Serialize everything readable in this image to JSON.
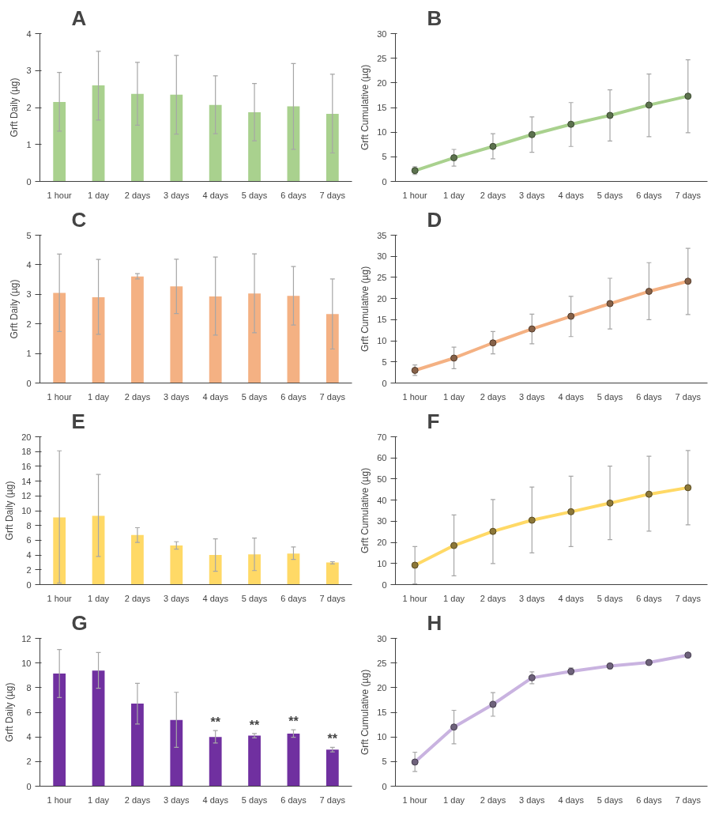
{
  "chart_data": [
    {
      "type": "bar",
      "title": "A",
      "ylabel": "Grft Daily (µg)",
      "categories": [
        "1 hour",
        "1 day",
        "2 days",
        "3 days",
        "4 days",
        "5 days",
        "6 days",
        "7 days"
      ],
      "ylim": [
        0,
        4
      ],
      "yticks": [
        0,
        1,
        2,
        3,
        4
      ],
      "grid": false,
      "series": [
        {
          "color": "#a9d18e",
          "values": [
            2.15,
            2.6,
            2.37,
            2.35,
            2.07,
            1.87,
            2.03,
            1.83
          ],
          "errors": [
            [
              1.36,
              2.95
            ],
            [
              1.66,
              3.52
            ],
            [
              1.52,
              3.22
            ],
            [
              1.28,
              3.41
            ],
            [
              1.29,
              2.86
            ],
            [
              1.1,
              2.65
            ],
            [
              0.87,
              3.19
            ],
            [
              0.77,
              2.9
            ]
          ]
        }
      ]
    },
    {
      "type": "line",
      "title": "B",
      "ylabel": "Grft Cumulative (µg)",
      "categories": [
        "1 hour",
        "1 day",
        "2 days",
        "3 days",
        "4 days",
        "5 days",
        "6 days",
        "7 days"
      ],
      "ylim": [
        0,
        30
      ],
      "yticks": [
        0,
        5,
        10,
        15,
        20,
        25,
        30
      ],
      "grid": false,
      "marker": "circle",
      "series": [
        {
          "color": "#a9d18e",
          "values": [
            2.2,
            4.8,
            7.1,
            9.5,
            11.6,
            13.4,
            15.5,
            17.3
          ],
          "errors": [
            [
              1.4,
              3.0
            ],
            [
              3.1,
              6.5
            ],
            [
              4.6,
              9.7
            ],
            [
              5.9,
              13.1
            ],
            [
              7.1,
              16
            ],
            [
              8.2,
              18.6
            ],
            [
              9.1,
              21.8
            ],
            [
              9.9,
              24.7
            ]
          ]
        }
      ]
    },
    {
      "type": "bar",
      "title": "C",
      "ylabel": "Grft Daily (µg)",
      "categories": [
        "1 hour",
        "1 day",
        "2 days",
        "3 days",
        "4 days",
        "5 days",
        "6 days",
        "7 days"
      ],
      "ylim": [
        0,
        5
      ],
      "yticks": [
        0,
        1,
        2,
        3,
        4,
        5
      ],
      "grid": false,
      "series": [
        {
          "color": "#f4b183",
          "values": [
            3.05,
            2.9,
            3.6,
            3.27,
            2.93,
            3.03,
            2.95,
            2.33
          ],
          "errors": [
            [
              1.74,
              4.36
            ],
            [
              1.65,
              4.18
            ],
            [
              3.52,
              3.7
            ],
            [
              2.35,
              4.19
            ],
            [
              1.62,
              4.26
            ],
            [
              1.7,
              4.37
            ],
            [
              1.96,
              3.94
            ],
            [
              1.15,
              3.52
            ]
          ]
        }
      ]
    },
    {
      "type": "line",
      "title": "D",
      "ylabel": "Grft Cumulative (µg)",
      "categories": [
        "1 hour",
        "1 day",
        "2 days",
        "3 days",
        "4 days",
        "5 days",
        "6 days",
        "7 days"
      ],
      "ylim": [
        0,
        35
      ],
      "yticks": [
        0,
        5,
        10,
        15,
        20,
        25,
        30,
        35
      ],
      "grid": false,
      "marker": "circle",
      "series": [
        {
          "color": "#f4b183",
          "values": [
            3.0,
            5.9,
            9.5,
            12.8,
            15.8,
            18.8,
            21.7,
            24.1
          ],
          "errors": [
            [
              1.8,
              4.3
            ],
            [
              3.4,
              8.5
            ],
            [
              6.9,
              12.2
            ],
            [
              9.3,
              16.3
            ],
            [
              11,
              20.5
            ],
            [
              12.8,
              24.8
            ],
            [
              15,
              28.5
            ],
            [
              16.2,
              31.9
            ]
          ]
        }
      ]
    },
    {
      "type": "bar",
      "title": "E",
      "ylabel": "Grft Daily (µg)",
      "categories": [
        "1 hour",
        "1 day",
        "2 days",
        "3 days",
        "4 days",
        "5 days",
        "6 days",
        "7 days"
      ],
      "ylim": [
        0,
        20
      ],
      "yticks": [
        0,
        2,
        4,
        6,
        8,
        10,
        12,
        14,
        16,
        18,
        20
      ],
      "grid": false,
      "series": [
        {
          "color": "#ffd966",
          "values": [
            9.1,
            9.3,
            6.7,
            5.3,
            4.0,
            4.1,
            4.2,
            3.0
          ],
          "errors": [
            [
              0.2,
              18.1
            ],
            [
              3.8,
              14.9
            ],
            [
              5.7,
              7.7
            ],
            [
              4.8,
              5.8
            ],
            [
              1.8,
              6.2
            ],
            [
              1.9,
              6.3
            ],
            [
              3.4,
              5.1
            ],
            [
              2.8,
              3.1
            ]
          ]
        }
      ]
    },
    {
      "type": "line",
      "title": "F",
      "ylabel": "Grft Cumulative (µg)",
      "categories": [
        "1 hour",
        "1 day",
        "2 days",
        "3 days",
        "4 days",
        "5 days",
        "6 days",
        "7 days"
      ],
      "ylim": [
        0,
        70
      ],
      "yticks": [
        0,
        10,
        20,
        30,
        40,
        50,
        60,
        70
      ],
      "grid": false,
      "marker": "circle",
      "series": [
        {
          "color": "#ffd966",
          "values": [
            9.2,
            18.5,
            25.2,
            30.5,
            34.5,
            38.6,
            42.8,
            45.9
          ],
          "errors": [
            [
              0.3,
              18.0
            ],
            [
              4.2,
              33
            ],
            [
              10,
              40.3
            ],
            [
              15,
              46.2
            ],
            [
              18,
              51.3
            ],
            [
              21.3,
              56.1
            ],
            [
              25.3,
              60.8
            ],
            [
              28.3,
              63.5
            ]
          ]
        }
      ]
    },
    {
      "type": "bar",
      "title": "G",
      "ylabel": "Grft Daily (µg)",
      "categories": [
        "1 hour",
        "1 day",
        "2 days",
        "3 days",
        "4 days",
        "5 days",
        "6 days",
        "7 days"
      ],
      "ylim": [
        0,
        12
      ],
      "yticks": [
        0,
        2,
        4,
        6,
        8,
        10,
        12
      ],
      "grid": false,
      "series": [
        {
          "color": "#7030a0",
          "values": [
            9.15,
            9.38,
            6.7,
            5.38,
            4.0,
            4.1,
            4.27,
            2.97
          ],
          "errors": [
            [
              7.2,
              11.1
            ],
            [
              7.95,
              10.85
            ],
            [
              5.05,
              8.35
            ],
            [
              3.15,
              7.62
            ],
            [
              3.5,
              4.52
            ],
            [
              3.92,
              4.28
            ],
            [
              3.97,
              4.58
            ],
            [
              2.78,
              3.15
            ]
          ]
        }
      ],
      "annotations": [
        {
          "text": "**",
          "x": "4 days",
          "y": 4.52
        },
        {
          "text": "**",
          "x": "5 days",
          "y": 4.28
        },
        {
          "text": "**",
          "x": "6 days",
          "y": 4.58
        },
        {
          "text": "**",
          "x": "7 days",
          "y": 3.15
        }
      ]
    },
    {
      "type": "line",
      "title": "H",
      "ylabel": "Grft Cumulative (µg)",
      "categories": [
        "1 hour",
        "1 day",
        "2 days",
        "3 days",
        "4 days",
        "5 days",
        "6 days",
        "7 days"
      ],
      "ylim": [
        0,
        30
      ],
      "yticks": [
        0,
        5,
        10,
        15,
        20,
        25,
        30
      ],
      "grid": false,
      "marker": "circle",
      "series": [
        {
          "color": "#c9b3e0",
          "values": [
            4.9,
            12.0,
            16.6,
            22.0,
            23.3,
            24.4,
            25.1,
            26.6
          ],
          "errors": [
            [
              3.0,
              6.9
            ],
            [
              8.6,
              15.4
            ],
            [
              14.2,
              19.0
            ],
            [
              20.8,
              23.2
            ],
            [
              22.6,
              24.0
            ],
            [
              23.8,
              24.9
            ],
            null,
            null
          ]
        }
      ]
    }
  ]
}
